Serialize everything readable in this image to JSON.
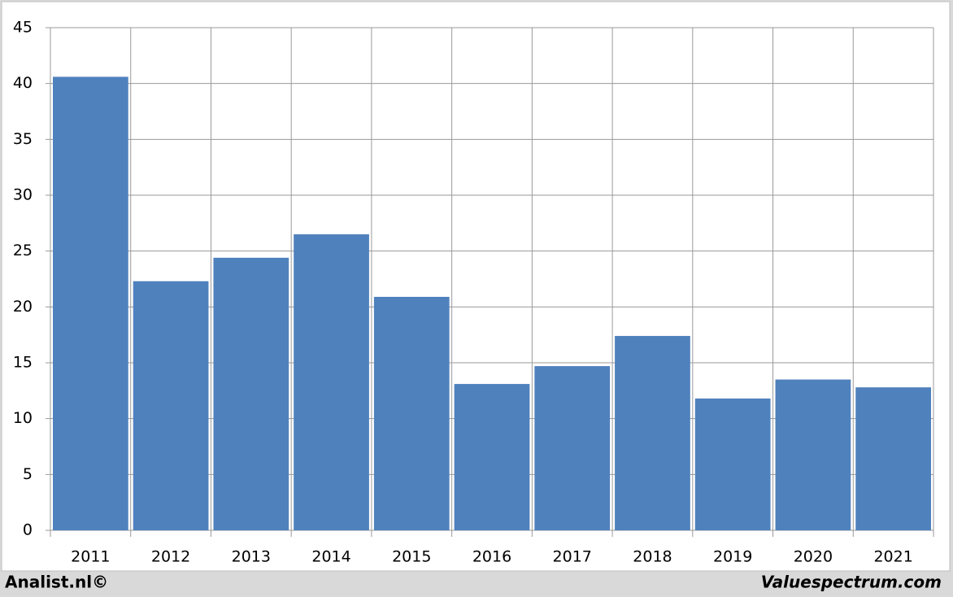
{
  "chart_data": {
    "type": "bar",
    "categories": [
      "2011",
      "2012",
      "2013",
      "2014",
      "2015",
      "2016",
      "2017",
      "2018",
      "2019",
      "2020",
      "2021"
    ],
    "values": [
      40.6,
      22.3,
      24.4,
      26.5,
      20.9,
      13.1,
      14.7,
      17.4,
      11.8,
      13.5,
      12.8
    ],
    "color": "#4f81bd",
    "ylim": [
      0,
      45
    ],
    "yticks": [
      0,
      5,
      10,
      15,
      20,
      25,
      30,
      35,
      40,
      45
    ],
    "grid": true,
    "footer": [
      "Analist.nl©",
      "Valuespectrum.com"
    ]
  }
}
